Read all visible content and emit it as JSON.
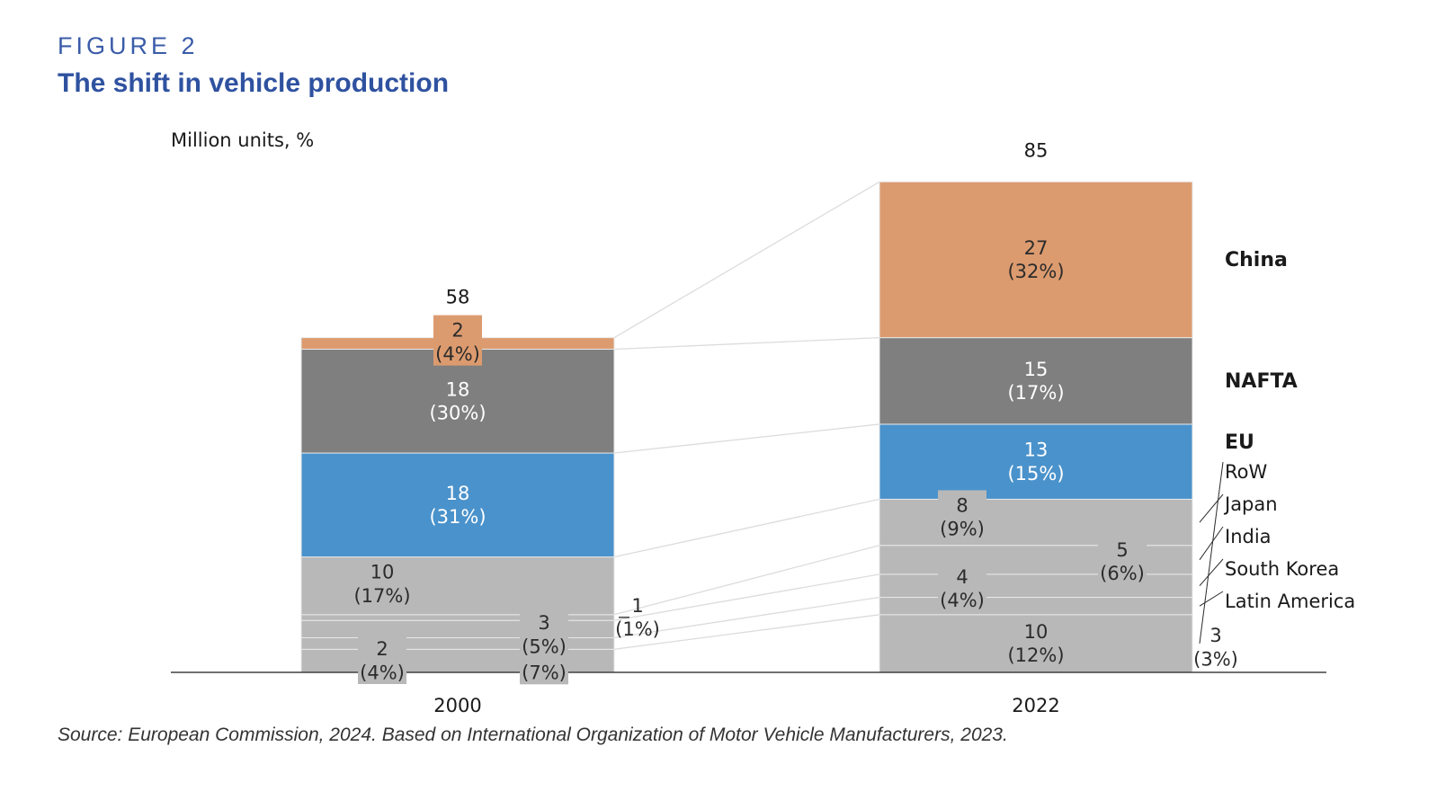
{
  "header": {
    "figure_label": "FIGURE 2",
    "title": "The shift in vehicle production"
  },
  "source": "Source: European Commission, 2024. Based on International Organization of Motor Vehicle Manufacturers, 2023.",
  "colors": {
    "China": "#dc9b6f",
    "NAFTA": "#7f7f7f",
    "EU": "#4a92cb",
    "other": "#b8b8b8",
    "axis": "#404040",
    "connector": "#dcdcdc",
    "legend_bold_text": "#1a1a1a"
  },
  "chart_data": {
    "type": "bar",
    "stacked": true,
    "unit_label": "Million units, %",
    "categories": [
      "2000",
      "2022"
    ],
    "totals": [
      "58",
      "85"
    ],
    "series_order_bottom_to_top": [
      "RoW",
      "Latin America",
      "South Korea",
      "India",
      "Japan",
      "EU",
      "NAFTA",
      "China"
    ],
    "series": [
      {
        "name": "China",
        "values": [
          2,
          27
        ],
        "labels": [
          "2\n(4%)",
          "27\n(32%)"
        ]
      },
      {
        "name": "NAFTA",
        "values": [
          18,
          15
        ],
        "labels": [
          "18\n(30%)",
          "15\n(17%)"
        ]
      },
      {
        "name": "EU",
        "values": [
          18,
          13
        ],
        "labels": [
          "18\n(31%)",
          "13\n(15%)"
        ]
      },
      {
        "name": "RoW",
        "values": [
          4,
          10
        ],
        "labels": [
          "4\n(7%)",
          "10\n(12%)"
        ]
      },
      {
        "name": "Japan",
        "values": [
          10,
          8
        ],
        "labels": [
          "10\n(17%)",
          "8\n(9%)"
        ]
      },
      {
        "name": "India",
        "values": [
          1,
          5
        ],
        "labels": [
          "1\n(1%)",
          "5\n(6%)"
        ]
      },
      {
        "name": "South Korea",
        "values": [
          3,
          4
        ],
        "labels": [
          "3\n(5%)",
          "4\n(4%)"
        ]
      },
      {
        "name": "Latin America",
        "values": [
          2,
          3
        ],
        "labels": [
          "2\n(4%)",
          "3\n(3%)"
        ]
      }
    ],
    "legend": [
      {
        "name": "China",
        "bold": true
      },
      {
        "name": "NAFTA",
        "bold": true
      },
      {
        "name": "EU",
        "bold": true
      },
      {
        "name": "RoW",
        "bold": false
      },
      {
        "name": "Japan",
        "bold": false
      },
      {
        "name": "India",
        "bold": false
      },
      {
        "name": "South Korea",
        "bold": false
      },
      {
        "name": "Latin America",
        "bold": false
      }
    ],
    "legend_placement": "right",
    "ylim": [
      0,
      85
    ],
    "grid": false
  }
}
